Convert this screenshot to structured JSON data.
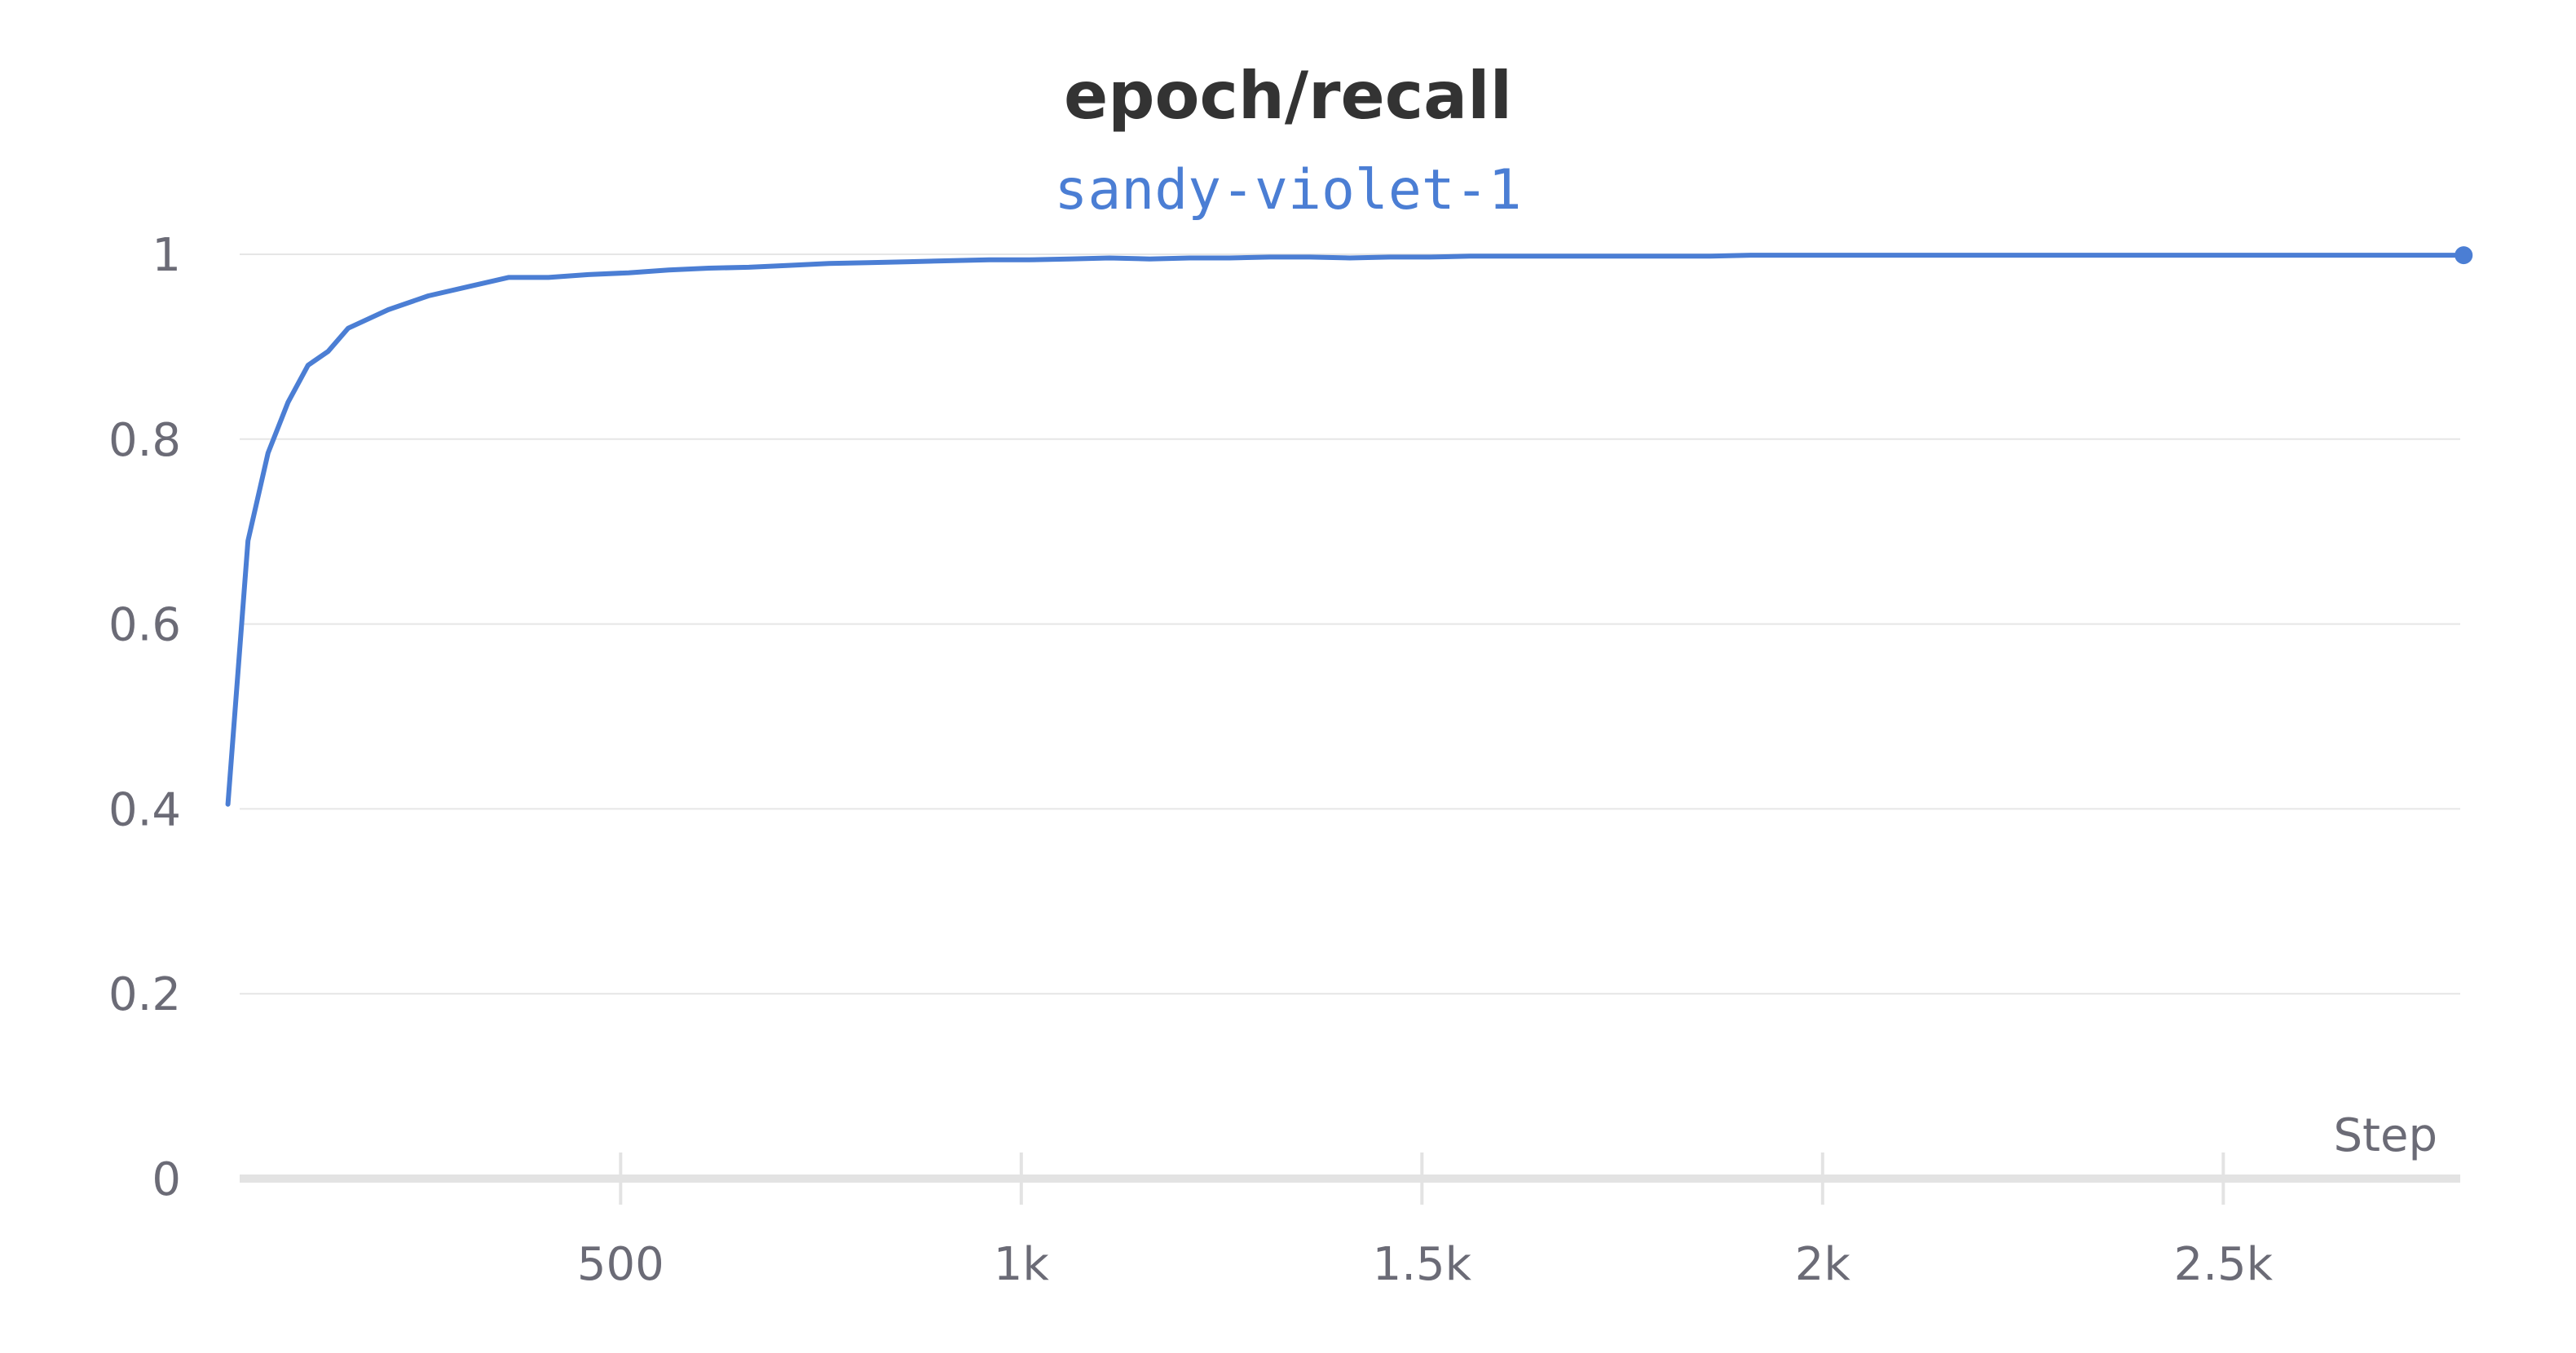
{
  "chart_data": {
    "type": "line",
    "title": "epoch/recall",
    "xlabel": "Step",
    "ylabel": "",
    "xlim": [
      10,
      2800
    ],
    "ylim": [
      0,
      1
    ],
    "x_ticks": [
      500,
      1000,
      1500,
      2000,
      2500
    ],
    "x_tick_labels": [
      "500",
      "1k",
      "1.5k",
      "2k",
      "2.5k"
    ],
    "y_ticks": [
      0,
      0.2,
      0.4,
      0.6,
      0.8,
      1
    ],
    "y_tick_labels": [
      "0",
      "0.2",
      "0.4",
      "0.6",
      "0.8",
      "1"
    ],
    "grid": true,
    "legend": "top-center",
    "series": [
      {
        "name": "sandy-violet-1",
        "color": "#4b7ed4",
        "x": [
          10,
          35,
          60,
          85,
          110,
          135,
          160,
          210,
          260,
          310,
          360,
          410,
          460,
          510,
          560,
          610,
          660,
          710,
          760,
          810,
          860,
          910,
          960,
          1010,
          1060,
          1110,
          1160,
          1210,
          1260,
          1310,
          1360,
          1410,
          1460,
          1510,
          1560,
          1610,
          1660,
          1710,
          1760,
          1810,
          1860,
          1910,
          1960,
          2010,
          2060,
          2110,
          2160,
          2210,
          2260,
          2310,
          2360,
          2410,
          2460,
          2510,
          2560,
          2610,
          2660,
          2710,
          2760,
          2800
        ],
        "values": [
          0.405,
          0.69,
          0.785,
          0.84,
          0.88,
          0.895,
          0.92,
          0.94,
          0.955,
          0.965,
          0.975,
          0.975,
          0.978,
          0.98,
          0.983,
          0.985,
          0.986,
          0.988,
          0.99,
          0.991,
          0.992,
          0.993,
          0.994,
          0.994,
          0.995,
          0.996,
          0.995,
          0.996,
          0.996,
          0.997,
          0.997,
          0.996,
          0.997,
          0.997,
          0.998,
          0.998,
          0.998,
          0.998,
          0.998,
          0.998,
          0.998,
          0.999,
          0.999,
          0.999,
          0.999,
          0.999,
          0.999,
          0.999,
          0.999,
          0.999,
          0.999,
          0.999,
          0.999,
          0.999,
          0.999,
          0.999,
          0.999,
          0.999,
          0.999,
          0.999
        ]
      }
    ]
  }
}
